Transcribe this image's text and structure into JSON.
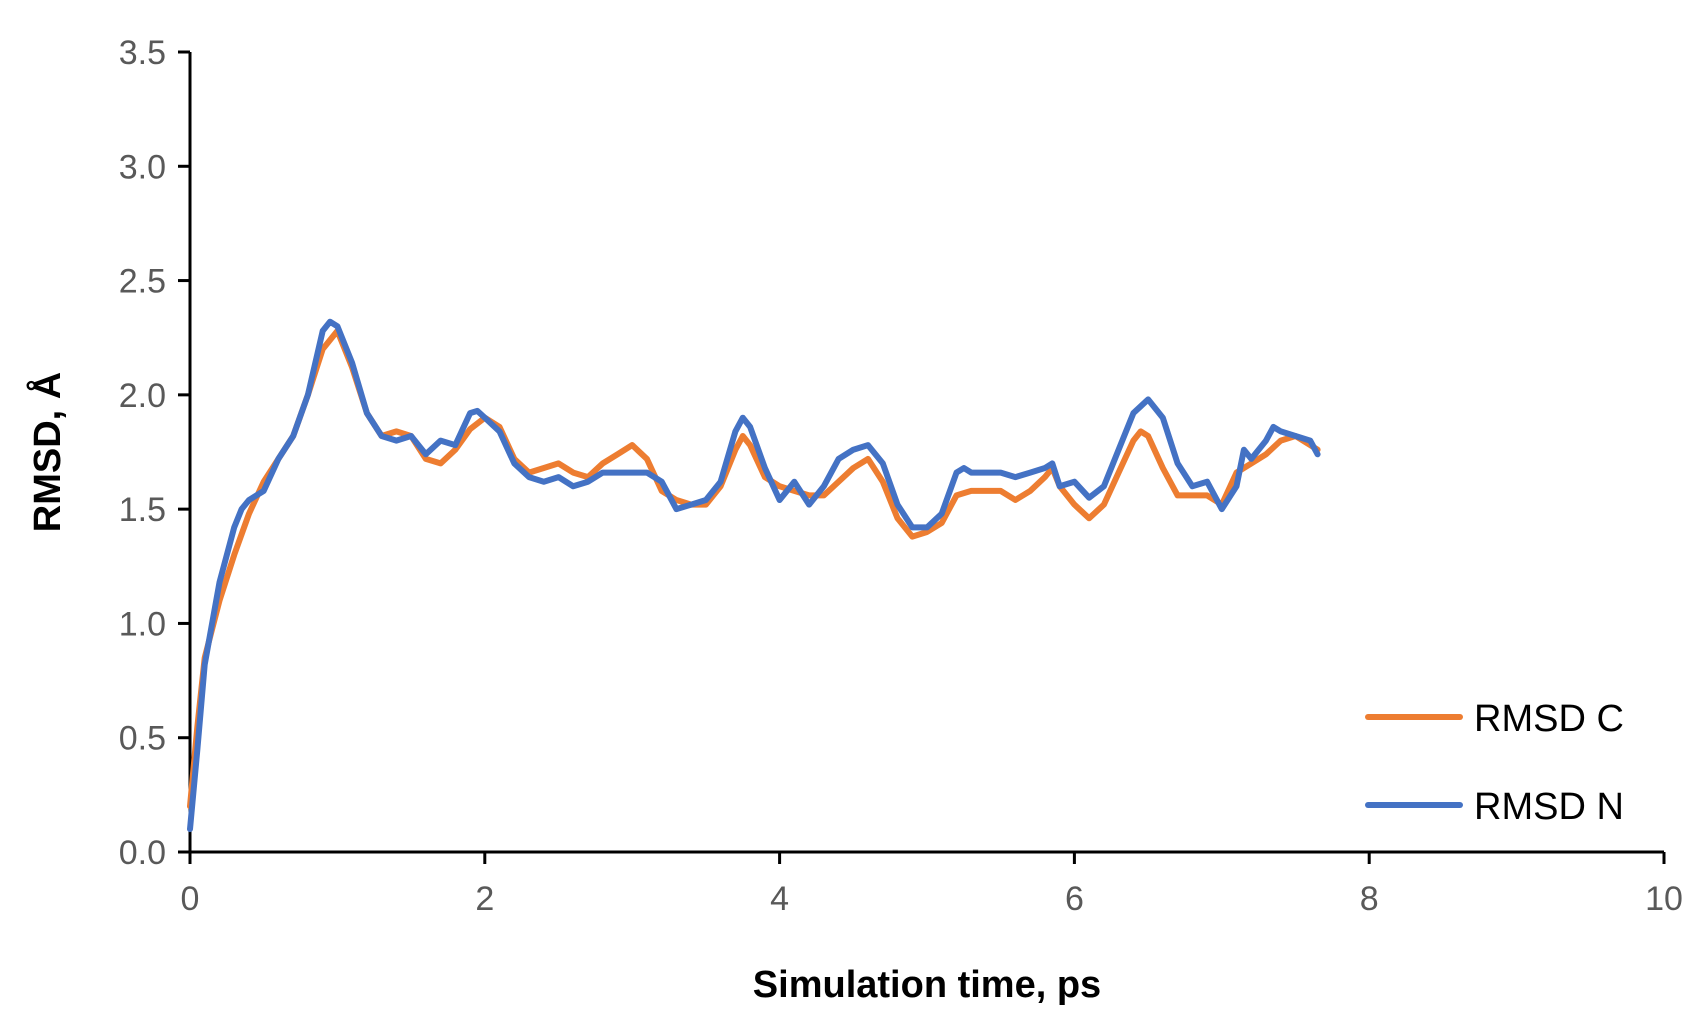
{
  "chart_data": {
    "type": "line",
    "title": "",
    "xlabel": "Simulation time, ps",
    "ylabel": "RMSD, Å",
    "xlim": [
      0,
      10
    ],
    "ylim": [
      0,
      3.5
    ],
    "x_ticks": [
      "0",
      "2",
      "4",
      "6",
      "8",
      "10"
    ],
    "y_ticks": [
      "0.0",
      "0.5",
      "1.0",
      "1.5",
      "2.0",
      "2.5",
      "3.0",
      "3.5"
    ],
    "grid": false,
    "legend_position": "bottom-right",
    "series": [
      {
        "name": "RMSD C",
        "color": "#ED7D31",
        "x": [
          0,
          0.05,
          0.1,
          0.2,
          0.3,
          0.4,
          0.5,
          0.6,
          0.7,
          0.8,
          0.9,
          1.0,
          1.1,
          1.2,
          1.3,
          1.4,
          1.5,
          1.6,
          1.7,
          1.8,
          1.9,
          2.0,
          2.1,
          2.2,
          2.3,
          2.4,
          2.5,
          2.6,
          2.7,
          2.8,
          2.9,
          3.0,
          3.1,
          3.2,
          3.3,
          3.4,
          3.5,
          3.6,
          3.7,
          3.75,
          3.8,
          3.9,
          4.0,
          4.1,
          4.2,
          4.3,
          4.4,
          4.5,
          4.6,
          4.7,
          4.8,
          4.9,
          5.0,
          5.1,
          5.2,
          5.3,
          5.4,
          5.5,
          5.6,
          5.7,
          5.8,
          5.85,
          5.9,
          6.0,
          6.1,
          6.2,
          6.3,
          6.4,
          6.45,
          6.5,
          6.6,
          6.7,
          6.8,
          6.9,
          7.0,
          7.1,
          7.2,
          7.3,
          7.4,
          7.5,
          7.6,
          7.65
        ],
        "values": [
          0.2,
          0.55,
          0.85,
          1.1,
          1.3,
          1.48,
          1.62,
          1.72,
          1.82,
          2.0,
          2.2,
          2.28,
          2.12,
          1.92,
          1.82,
          1.84,
          1.82,
          1.72,
          1.7,
          1.76,
          1.85,
          1.9,
          1.86,
          1.72,
          1.66,
          1.68,
          1.7,
          1.66,
          1.64,
          1.7,
          1.74,
          1.78,
          1.72,
          1.58,
          1.54,
          1.52,
          1.52,
          1.6,
          1.76,
          1.82,
          1.78,
          1.64,
          1.6,
          1.58,
          1.56,
          1.56,
          1.62,
          1.68,
          1.72,
          1.62,
          1.46,
          1.38,
          1.4,
          1.44,
          1.56,
          1.58,
          1.58,
          1.58,
          1.54,
          1.58,
          1.64,
          1.68,
          1.6,
          1.52,
          1.46,
          1.52,
          1.66,
          1.8,
          1.84,
          1.82,
          1.68,
          1.56,
          1.56,
          1.56,
          1.52,
          1.66,
          1.7,
          1.74,
          1.8,
          1.82,
          1.78,
          1.76
        ]
      },
      {
        "name": "RMSD N",
        "color": "#4472C4",
        "x": [
          0,
          0.05,
          0.1,
          0.2,
          0.3,
          0.35,
          0.4,
          0.5,
          0.6,
          0.7,
          0.8,
          0.9,
          0.95,
          1.0,
          1.1,
          1.2,
          1.3,
          1.4,
          1.5,
          1.6,
          1.7,
          1.8,
          1.9,
          1.95,
          2.0,
          2.1,
          2.2,
          2.3,
          2.4,
          2.5,
          2.6,
          2.7,
          2.8,
          2.9,
          3.0,
          3.1,
          3.2,
          3.3,
          3.4,
          3.5,
          3.6,
          3.7,
          3.75,
          3.8,
          3.9,
          4.0,
          4.1,
          4.2,
          4.3,
          4.4,
          4.5,
          4.6,
          4.7,
          4.8,
          4.9,
          5.0,
          5.1,
          5.2,
          5.25,
          5.3,
          5.4,
          5.5,
          5.6,
          5.7,
          5.8,
          5.85,
          5.9,
          6.0,
          6.1,
          6.2,
          6.3,
          6.4,
          6.5,
          6.6,
          6.7,
          6.8,
          6.9,
          7.0,
          7.1,
          7.15,
          7.2,
          7.3,
          7.35,
          7.4,
          7.5,
          7.6,
          7.65
        ],
        "values": [
          0.1,
          0.45,
          0.82,
          1.18,
          1.42,
          1.5,
          1.54,
          1.58,
          1.72,
          1.82,
          2.0,
          2.28,
          2.32,
          2.3,
          2.14,
          1.92,
          1.82,
          1.8,
          1.82,
          1.74,
          1.8,
          1.78,
          1.92,
          1.93,
          1.9,
          1.84,
          1.7,
          1.64,
          1.62,
          1.64,
          1.6,
          1.62,
          1.66,
          1.66,
          1.66,
          1.66,
          1.62,
          1.5,
          1.52,
          1.54,
          1.62,
          1.84,
          1.9,
          1.86,
          1.68,
          1.54,
          1.62,
          1.52,
          1.6,
          1.72,
          1.76,
          1.78,
          1.7,
          1.52,
          1.42,
          1.42,
          1.48,
          1.66,
          1.68,
          1.66,
          1.66,
          1.66,
          1.64,
          1.66,
          1.68,
          1.7,
          1.6,
          1.62,
          1.55,
          1.6,
          1.76,
          1.92,
          1.98,
          1.9,
          1.7,
          1.6,
          1.62,
          1.5,
          1.6,
          1.76,
          1.72,
          1.8,
          1.86,
          1.84,
          1.82,
          1.8,
          1.74
        ]
      }
    ]
  }
}
